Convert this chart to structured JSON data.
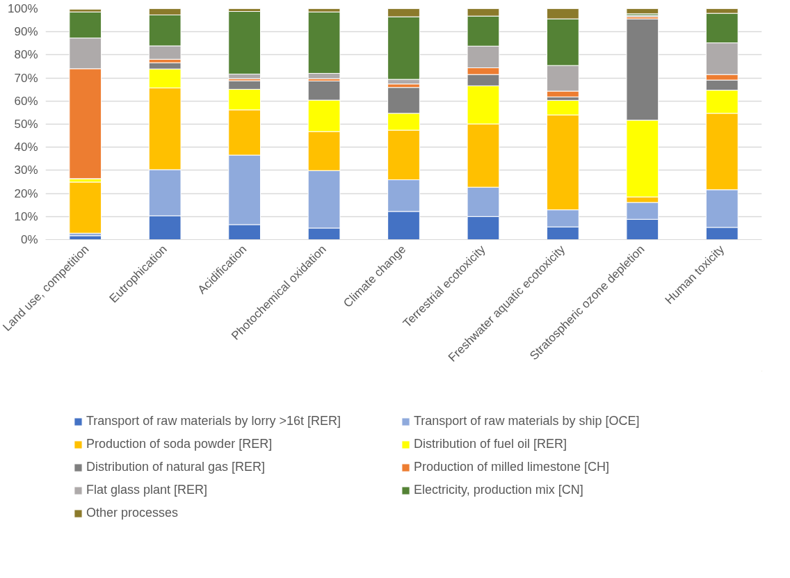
{
  "chart_data": {
    "type": "bar",
    "stacked": true,
    "legend": "bottom",
    "grid": "y",
    "categories": [
      "Land use, competition",
      "Eutrophication",
      "Acidification",
      "Photochemical oxidation",
      "Climate change",
      "Terrestrial ecotoxicity",
      "Freshwater aquatic ecotoxicity",
      "Stratospheric ozone depletion",
      "Human toxicity"
    ],
    "ylim": [
      0,
      100
    ],
    "yticks": [
      {
        "value": 0,
        "label": "0%"
      },
      {
        "value": 10,
        "label": "10%"
      },
      {
        "value": 20,
        "label": "20%"
      },
      {
        "value": 30,
        "label": "30%"
      },
      {
        "value": 40,
        "label": "40%"
      },
      {
        "value": 50,
        "label": "50%"
      },
      {
        "value": 60,
        "label": "60%"
      },
      {
        "value": 70,
        "label": "70%"
      },
      {
        "value": 80,
        "label": "80%"
      },
      {
        "value": 90,
        "label": "90%"
      },
      {
        "value": 100,
        "label": "100%"
      }
    ],
    "series": [
      {
        "name": "Transport of raw materials by lorry >16t [RER]",
        "color": "#4472c4",
        "values": [
          1.7,
          10.3,
          6.5,
          5.0,
          12.2,
          10.0,
          5.5,
          8.8,
          5.3
        ]
      },
      {
        "name": "Transport of raw materials by ship [OCE]",
        "color": "#8faadc",
        "values": [
          1.1,
          20.0,
          30.1,
          24.9,
          13.7,
          12.7,
          7.4,
          7.3,
          16.3
        ]
      },
      {
        "name": "Production of soda powder [RER]",
        "color": "#ffc000",
        "values": [
          22.1,
          35.4,
          19.6,
          16.9,
          21.5,
          27.4,
          41.1,
          2.4,
          33.1
        ]
      },
      {
        "name": "Distribution of fuel oil [RER]",
        "color": "#ffff00",
        "values": [
          1.5,
          8.2,
          8.9,
          13.6,
          7.3,
          16.5,
          6.3,
          33.2,
          10.0
        ]
      },
      {
        "name": "Distribution of natural gas [RER]",
        "color": "#7f7f7f",
        "values": [
          null,
          2.7,
          3.7,
          8.3,
          11.2,
          4.9,
          1.5,
          43.9,
          4.4
        ]
      },
      {
        "name": "Production of milled limestone [CH]",
        "color": "#ed7d31",
        "values": [
          47.6,
          1.5,
          0.9,
          1.0,
          1.5,
          2.9,
          2.5,
          0.9,
          2.4
        ]
      },
      {
        "name": "Flat glass plant [RER]",
        "color": "#aeaaaa",
        "values": [
          13.3,
          5.8,
          2.0,
          2.3,
          2.0,
          9.4,
          11.1,
          0.6,
          13.7
        ]
      },
      {
        "name": "Electricity, production mix [CN]",
        "color": "#548235",
        "values": [
          11.3,
          13.4,
          27.1,
          26.6,
          27.1,
          13.0,
          20.2,
          0.7,
          12.8
        ]
      },
      {
        "name": "Other processes",
        "color": "#8b7a2b",
        "values": [
          1.2,
          2.7,
          1.2,
          1.4,
          3.5,
          3.2,
          4.4,
          2.2,
          2.0
        ]
      }
    ]
  }
}
